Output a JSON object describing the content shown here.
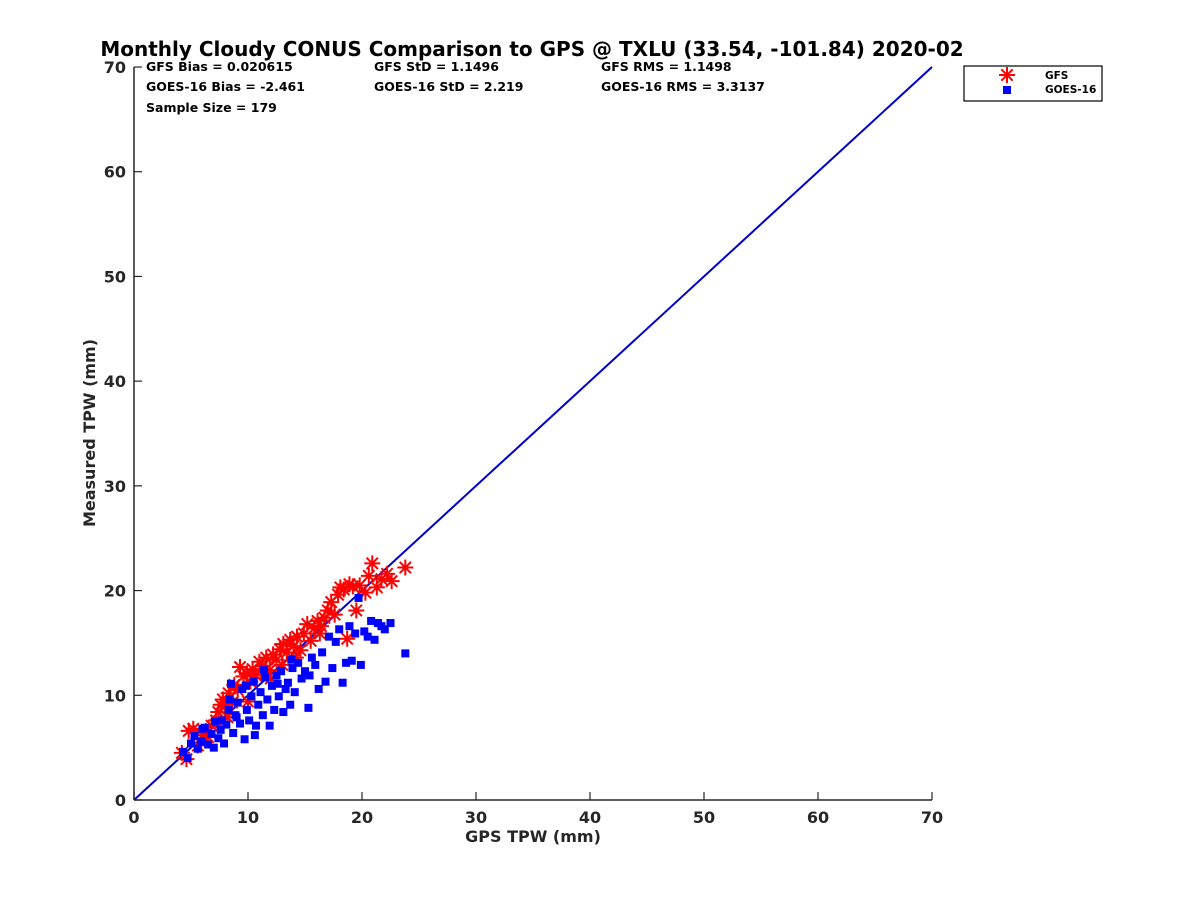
{
  "chart_data": {
    "type": "scatter",
    "title": "Monthly Cloudy CONUS Comparison to GPS @ TXLU (33.54, -101.84) 2020-02",
    "xlabel": "GPS TPW (mm)",
    "ylabel": "Measured TPW (mm)",
    "xlim": [
      0,
      70
    ],
    "ylim": [
      0,
      70
    ],
    "xticks": [
      0,
      10,
      20,
      30,
      40,
      50,
      60,
      70
    ],
    "yticks": [
      0,
      10,
      20,
      30,
      40,
      50,
      60,
      70
    ],
    "xtick_labels": [
      "0",
      "10",
      "20",
      "30",
      "40",
      "50",
      "60",
      "70"
    ],
    "ytick_labels": [
      "0",
      "10",
      "20",
      "30",
      "40",
      "50",
      "60",
      "70"
    ],
    "grid": false,
    "legend_position": "top-right, outside axes",
    "stats": [
      [
        "GFS Bias = 0.020615",
        "GFS StD = 1.1496",
        "GFS RMS = 1.1498"
      ],
      [
        "GOES-16 Bias = -2.461",
        "GOES-16 StD = 2.219",
        "GOES-16 RMS = 3.3137"
      ],
      [
        "Sample Size = 179"
      ]
    ],
    "reference_line": {
      "x": [
        0,
        70
      ],
      "y": [
        0,
        70
      ],
      "color": "#0000cc"
    },
    "series": [
      {
        "name": "GFS",
        "marker": "asterisk",
        "color": "#ff0000",
        "points": [
          [
            4.2,
            4.5
          ],
          [
            4.6,
            3.9
          ],
          [
            4.8,
            6.6
          ],
          [
            5.2,
            6.8
          ],
          [
            5.6,
            5.2
          ],
          [
            6.0,
            6.2
          ],
          [
            6.5,
            6.0
          ],
          [
            6.8,
            7.1
          ],
          [
            7.2,
            7.6
          ],
          [
            7.4,
            8.4
          ],
          [
            7.6,
            9.1
          ],
          [
            7.8,
            9.6
          ],
          [
            8.0,
            8.9
          ],
          [
            8.3,
            10.2
          ],
          [
            8.6,
            9.3
          ],
          [
            8.8,
            11.0
          ],
          [
            9.1,
            10.5
          ],
          [
            9.3,
            12.7
          ],
          [
            9.6,
            11.8
          ],
          [
            9.9,
            12.1
          ],
          [
            10.2,
            11.3
          ],
          [
            10.4,
            12.5
          ],
          [
            10.7,
            11.9
          ],
          [
            11.0,
            13.2
          ],
          [
            11.3,
            12.8
          ],
          [
            11.6,
            13.6
          ],
          [
            11.9,
            12.4
          ],
          [
            12.2,
            13.9
          ],
          [
            12.5,
            13.4
          ],
          [
            12.8,
            14.4
          ],
          [
            13.1,
            14.9
          ],
          [
            13.4,
            14.1
          ],
          [
            13.7,
            15.3
          ],
          [
            14.0,
            14.7
          ],
          [
            14.3,
            15.6
          ],
          [
            14.6,
            14.3
          ],
          [
            14.9,
            15.9
          ],
          [
            15.2,
            16.8
          ],
          [
            15.5,
            15.2
          ],
          [
            15.8,
            16.4
          ],
          [
            16.1,
            17.1
          ],
          [
            16.4,
            16.6
          ],
          [
            16.7,
            17.4
          ],
          [
            17.0,
            18.1
          ],
          [
            17.3,
            18.9
          ],
          [
            17.6,
            17.7
          ],
          [
            17.9,
            19.6
          ],
          [
            18.1,
            20.3
          ],
          [
            18.4,
            20.1
          ],
          [
            18.7,
            15.4
          ],
          [
            18.9,
            20.6
          ],
          [
            19.2,
            20.4
          ],
          [
            19.5,
            18.1
          ],
          [
            19.8,
            20.5
          ],
          [
            20.3,
            19.8
          ],
          [
            20.6,
            21.4
          ],
          [
            20.9,
            22.6
          ],
          [
            21.3,
            20.3
          ],
          [
            21.7,
            21.1
          ],
          [
            22.2,
            21.6
          ],
          [
            22.6,
            20.9
          ],
          [
            23.8,
            22.2
          ],
          [
            10.0,
            9.4
          ],
          [
            12.0,
            11.6
          ],
          [
            14.2,
            13.6
          ],
          [
            16.3,
            15.9
          ],
          [
            13.0,
            12.9
          ],
          [
            11.5,
            12.1
          ],
          [
            8.2,
            7.9
          ],
          [
            6.3,
            6.6
          ]
        ]
      },
      {
        "name": "GOES-16",
        "marker": "square",
        "color": "#0000ff",
        "points": [
          [
            4.3,
            4.6
          ],
          [
            4.7,
            4.0
          ],
          [
            5.0,
            5.4
          ],
          [
            5.3,
            6.1
          ],
          [
            5.6,
            4.9
          ],
          [
            5.9,
            5.6
          ],
          [
            6.2,
            6.9
          ],
          [
            6.5,
            5.3
          ],
          [
            6.8,
            6.3
          ],
          [
            7.1,
            7.5
          ],
          [
            7.4,
            5.9
          ],
          [
            7.6,
            6.7
          ],
          [
            7.9,
            5.4
          ],
          [
            8.1,
            7.2
          ],
          [
            8.3,
            8.6
          ],
          [
            8.5,
            11.1
          ],
          [
            8.7,
            6.4
          ],
          [
            8.9,
            8.1
          ],
          [
            9.1,
            9.3
          ],
          [
            9.3,
            7.3
          ],
          [
            9.5,
            10.6
          ],
          [
            9.7,
            5.8
          ],
          [
            9.9,
            8.6
          ],
          [
            10.1,
            7.6
          ],
          [
            10.3,
            9.9
          ],
          [
            10.5,
            11.3
          ],
          [
            10.7,
            7.1
          ],
          [
            10.9,
            9.1
          ],
          [
            11.1,
            10.3
          ],
          [
            11.3,
            8.1
          ],
          [
            11.5,
            11.7
          ],
          [
            11.7,
            9.6
          ],
          [
            11.9,
            7.1
          ],
          [
            12.1,
            10.9
          ],
          [
            12.3,
            8.6
          ],
          [
            12.5,
            11.9
          ],
          [
            12.7,
            9.9
          ],
          [
            12.9,
            12.3
          ],
          [
            13.1,
            8.4
          ],
          [
            13.3,
            10.6
          ],
          [
            13.5,
            11.2
          ],
          [
            13.7,
            9.1
          ],
          [
            13.9,
            12.6
          ],
          [
            14.1,
            10.3
          ],
          [
            14.4,
            13.1
          ],
          [
            14.7,
            11.6
          ],
          [
            15.0,
            12.3
          ],
          [
            15.3,
            8.8
          ],
          [
            15.6,
            13.6
          ],
          [
            15.9,
            12.9
          ],
          [
            16.2,
            10.6
          ],
          [
            16.5,
            14.1
          ],
          [
            16.8,
            11.3
          ],
          [
            17.1,
            15.6
          ],
          [
            17.4,
            12.6
          ],
          [
            17.7,
            15.1
          ],
          [
            18.0,
            16.3
          ],
          [
            18.3,
            11.2
          ],
          [
            18.6,
            13.1
          ],
          [
            18.9,
            16.6
          ],
          [
            19.1,
            13.3
          ],
          [
            19.4,
            15.9
          ],
          [
            19.7,
            19.3
          ],
          [
            19.9,
            12.9
          ],
          [
            20.2,
            16.1
          ],
          [
            20.5,
            15.6
          ],
          [
            20.8,
            17.1
          ],
          [
            21.1,
            15.3
          ],
          [
            21.4,
            16.9
          ],
          [
            21.7,
            16.6
          ],
          [
            22.0,
            16.3
          ],
          [
            22.5,
            16.9
          ],
          [
            23.8,
            14.0
          ],
          [
            6.0,
            6.8
          ],
          [
            7.0,
            5.0
          ],
          [
            8.4,
            9.6
          ],
          [
            9.8,
            10.9
          ],
          [
            11.4,
            12.4
          ],
          [
            12.6,
            11.1
          ],
          [
            13.8,
            13.4
          ],
          [
            15.4,
            11.9
          ],
          [
            10.6,
            6.2
          ],
          [
            9.0,
            7.9
          ],
          [
            7.7,
            7.6
          ]
        ]
      }
    ]
  }
}
